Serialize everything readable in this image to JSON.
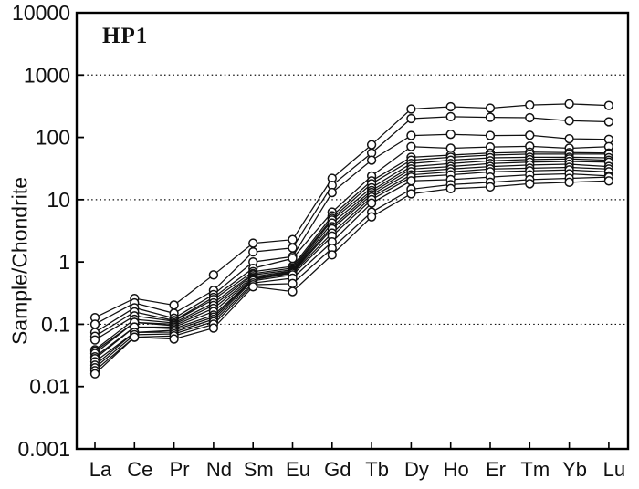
{
  "chart_data": {
    "type": "line",
    "title": "HP1",
    "ylabel": "Sample/Chondrite",
    "xlabel": "",
    "y_scale": "log",
    "ylim": [
      0.001,
      10000
    ],
    "y_ticks": [
      0.001,
      0.01,
      0.1,
      1,
      10,
      100,
      1000,
      10000
    ],
    "y_tick_labels": [
      "0.001",
      "0.01",
      "0.1",
      "1",
      "10",
      "100",
      "1000",
      "10000"
    ],
    "gridlines_dotted_at": [
      0.1,
      10,
      1000
    ],
    "grid": "dotted horizontal lines at 0.1, 10 and 1000",
    "legend": "none",
    "marker": "open-circle",
    "line_color": "#111111",
    "marker_fill": "#ffffff",
    "frame_color": "#000000",
    "categories": [
      "La",
      "Ce",
      "Pr",
      "Nd",
      "Sm",
      "Eu",
      "Gd",
      "Tb",
      "Dy",
      "Ho",
      "Er",
      "Tm",
      "Yb",
      "Lu"
    ],
    "series": [
      {
        "values": [
          0.128,
          0.26,
          0.203,
          0.62,
          2.0,
          2.28,
          22,
          76,
          285,
          310,
          295,
          330,
          345,
          325
        ]
      },
      {
        "values": [
          0.1,
          0.22,
          0.15,
          0.35,
          1.45,
          1.68,
          17,
          56,
          200,
          215,
          210,
          207,
          185,
          178
        ]
      },
      {
        "values": [
          0.074,
          0.184,
          0.125,
          0.3,
          1.0,
          1.22,
          13,
          43,
          107,
          112,
          107,
          108,
          95,
          93
        ]
      },
      {
        "values": [
          0.064,
          0.158,
          0.115,
          0.27,
          0.79,
          1.14,
          6.3,
          24,
          71,
          67,
          70,
          72,
          67,
          71
        ]
      },
      {
        "values": [
          0.056,
          0.136,
          0.112,
          0.25,
          0.7,
          0.85,
          5.5,
          20,
          48,
          52,
          56,
          58,
          57,
          56
        ]
      },
      {
        "values": [
          0.039,
          0.12,
          0.105,
          0.22,
          0.65,
          0.8,
          5.0,
          18,
          43,
          48,
          52,
          54,
          54,
          54
        ]
      },
      {
        "values": [
          0.037,
          0.107,
          0.1,
          0.2,
          0.62,
          0.75,
          4.7,
          15.5,
          38,
          43,
          47,
          48,
          48,
          47
        ]
      },
      {
        "values": [
          0.034,
          0.107,
          0.095,
          0.18,
          0.58,
          0.72,
          4.2,
          14,
          34,
          38,
          42,
          44,
          45,
          43
        ]
      },
      {
        "values": [
          0.03,
          0.09,
          0.09,
          0.16,
          0.55,
          0.7,
          3.7,
          13,
          31,
          34,
          38,
          40,
          41,
          40
        ]
      },
      {
        "values": [
          0.028,
          0.09,
          0.085,
          0.14,
          0.53,
          0.68,
          3.4,
          12,
          28,
          31,
          34,
          36,
          37,
          34
        ]
      },
      {
        "values": [
          0.025,
          0.074,
          0.08,
          0.13,
          0.52,
          0.66,
          2.9,
          11,
          25,
          28,
          31,
          32,
          33,
          31
        ]
      },
      {
        "values": [
          0.022,
          0.074,
          0.075,
          0.12,
          0.5,
          0.62,
          2.6,
          10,
          23,
          25,
          28,
          29,
          30,
          28
        ]
      },
      {
        "values": [
          0.02,
          0.068,
          0.07,
          0.11,
          0.46,
          0.55,
          2.1,
          8.8,
          20,
          21,
          23,
          25,
          26,
          24
        ]
      },
      {
        "values": [
          0.018,
          0.062,
          0.065,
          0.1,
          0.43,
          0.45,
          1.66,
          6.3,
          14.7,
          17.4,
          19,
          21,
          22,
          23
        ]
      },
      {
        "values": [
          0.016,
          0.062,
          0.058,
          0.087,
          0.4,
          0.335,
          1.3,
          5.3,
          12.4,
          15,
          16,
          18,
          19,
          20
        ]
      }
    ]
  }
}
